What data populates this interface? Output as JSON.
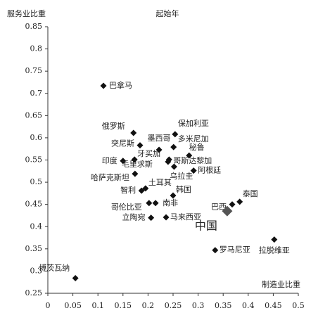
{
  "chart_data": {
    "type": "scatter",
    "title": "起始年",
    "y_label": "服务业比重",
    "x_label": "制造业比重",
    "labels": [
      "巴拿马",
      "俄罗斯",
      "保加利亚",
      "墨西哥",
      "突尼斯",
      "多米尼加",
      "秘鲁",
      "哥斯达黎加",
      "牙买加",
      "印度",
      "毛里求斯",
      "乌拉圭",
      "哈萨克斯坦",
      "阿根廷",
      "土耳其",
      "智利",
      "韩国",
      "泰国",
      "巴西",
      "中国",
      "哥伦比亚",
      "南非",
      "立陶宛",
      "马来西亚",
      "罗马尼亚",
      "拉脱维亚",
      "博茨瓦纳"
    ],
    "x": [
      0.111,
      0.171,
      0.254,
      0.222,
      0.184,
      0.251,
      0.282,
      0.242,
      0.173,
      0.15,
      0.24,
      0.252,
      0.174,
      0.291,
      0.195,
      0.187,
      0.25,
      0.383,
      0.368,
      0.358,
      0.202,
      0.215,
      0.206,
      0.236,
      0.334,
      0.452,
      0.055
    ],
    "y": [
      0.717,
      0.611,
      0.608,
      0.573,
      0.583,
      0.579,
      0.56,
      0.551,
      0.551,
      0.548,
      0.546,
      0.535,
      0.519,
      0.526,
      0.486,
      0.481,
      0.47,
      0.456,
      0.45,
      0.435,
      0.453,
      0.453,
      0.42,
      0.421,
      0.347,
      0.371,
      0.284
    ],
    "highlight": 19,
    "color": "#111111",
    "xlim": [
      0,
      0.5
    ],
    "xticks": [
      0,
      0.05,
      0.1,
      0.15,
      0.2,
      0.25,
      0.3,
      0.35,
      0.4,
      0.45,
      0.5
    ],
    "ylim": [
      0.25,
      0.85
    ],
    "yticks": [
      0.25,
      0.3,
      0.35,
      0.4,
      0.45,
      0.5,
      0.55,
      0.6,
      0.65,
      0.7,
      0.75,
      0.8,
      0.85
    ]
  }
}
